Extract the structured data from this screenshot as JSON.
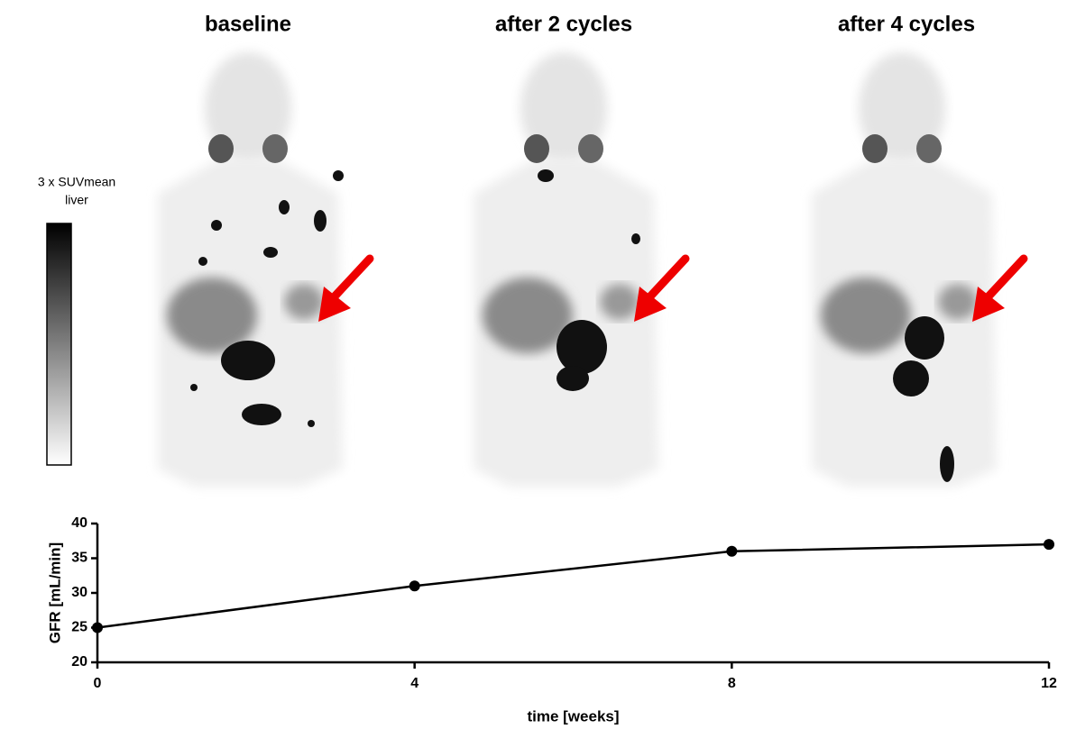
{
  "panels": [
    {
      "title": "baseline"
    },
    {
      "title": "after 2 cycles"
    },
    {
      "title": "after 4 cycles"
    }
  ],
  "colorbar": {
    "label_lines": [
      "3 x SUVmean",
      "liver"
    ]
  },
  "chart_data": {
    "type": "line",
    "x": [
      0,
      4,
      8,
      12
    ],
    "values": [
      25,
      31,
      36,
      37
    ],
    "color": "#000000",
    "xlim": [
      0,
      12
    ],
    "xticks": [
      0,
      4,
      8,
      12
    ],
    "ylim": [
      20,
      40
    ],
    "yticks": [
      20,
      25,
      30,
      35,
      40
    ],
    "xlabel": "time [weeks]",
    "ylabel": "GFR [mL/min]"
  }
}
